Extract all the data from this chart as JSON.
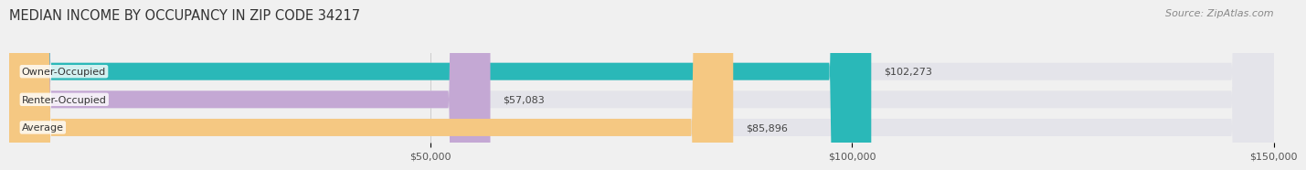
{
  "title": "MEDIAN INCOME BY OCCUPANCY IN ZIP CODE 34217",
  "source_text": "Source: ZipAtlas.com",
  "categories": [
    "Owner-Occupied",
    "Renter-Occupied",
    "Average"
  ],
  "values": [
    102273,
    57083,
    85896
  ],
  "bar_colors": [
    "#2ab8b8",
    "#c4a8d4",
    "#f5c882"
  ],
  "bar_labels": [
    "$102,273",
    "$57,083",
    "$85,896"
  ],
  "xlim": [
    0,
    150000
  ],
  "xtick_values": [
    50000,
    100000,
    150000
  ],
  "xtick_labels": [
    "$50,000",
    "$100,000",
    "$150,000"
  ],
  "bar_height": 0.62,
  "background_color": "#f0f0f0",
  "bar_bg_color": "#e4e4ea",
  "title_fontsize": 10.5,
  "label_fontsize": 8.0,
  "tick_fontsize": 8.0,
  "source_fontsize": 8.0
}
